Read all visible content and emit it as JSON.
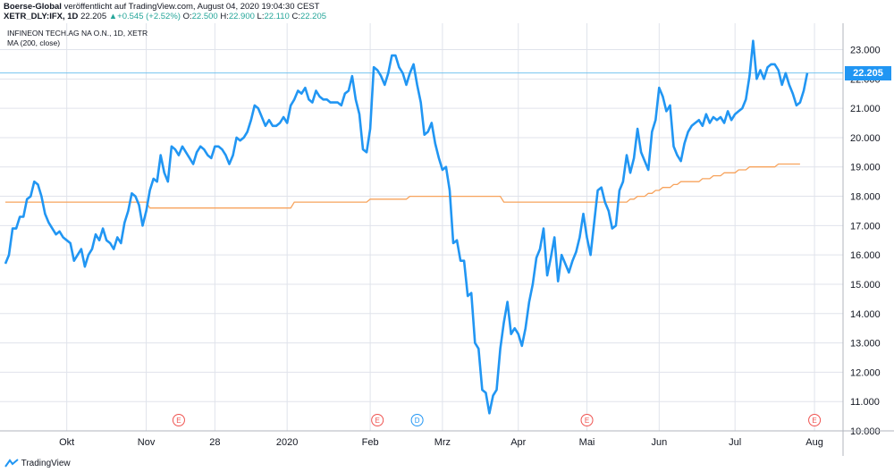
{
  "header": {
    "publisher": "Boerse-Global",
    "published_text": "veröffentlicht auf TradingView.com, August 04, 2020 19:04:30 CEST",
    "symbol": "XETR_DLY:IFX, 1D",
    "last": "22.205",
    "change": "+0.545 (+2.52%)",
    "o_label": "O:",
    "o_value": "22.500",
    "h_label": "H:",
    "h_value": "22.900",
    "l_label": "L:",
    "l_value": "22.110",
    "c_label": "C:",
    "c_value": "22.205"
  },
  "legend": {
    "instrument": "INFINEON TECH.AG NA O.N., 1D, XETR",
    "indicator": "MA (200, close)"
  },
  "price_tag": "22.205",
  "footer": {
    "brand": "TradingView"
  },
  "colors": {
    "price": "#2196f3",
    "ma": "#f7a35c",
    "grid": "#e0e3eb",
    "axis_text": "#131722",
    "last_line": "#74c4f0"
  },
  "chart_data": {
    "type": "line",
    "xlabel": "",
    "ylabel": "",
    "y_ticks": [
      "10.000",
      "11.000",
      "12.000",
      "13.000",
      "14.000",
      "15.000",
      "16.000",
      "17.000",
      "18.000",
      "19.000",
      "20.000",
      "21.000",
      "22.000",
      "23.000"
    ],
    "ylim": [
      10,
      23.9
    ],
    "x_ticks": [
      {
        "label": "Okt",
        "i": 17
      },
      {
        "label": "Nov",
        "i": 39
      },
      {
        "label": "28",
        "i": 58
      },
      {
        "label": "2020",
        "i": 78
      },
      {
        "label": "Feb",
        "i": 101
      },
      {
        "label": "Mrz",
        "i": 121
      },
      {
        "label": "Apr",
        "i": 142
      },
      {
        "label": "Mai",
        "i": 161
      },
      {
        "label": "Jun",
        "i": 181
      },
      {
        "label": "Jul",
        "i": 202
      },
      {
        "label": "Aug",
        "i": 224
      }
    ],
    "events": [
      {
        "label": "E",
        "i": 48,
        "kind": "earnings"
      },
      {
        "label": "E",
        "i": 103,
        "kind": "earnings"
      },
      {
        "label": "D",
        "i": 114,
        "kind": "dividend"
      },
      {
        "label": "E",
        "i": 161,
        "kind": "earnings"
      },
      {
        "label": "E",
        "i": 224,
        "kind": "earnings"
      }
    ],
    "grid": true,
    "series": [
      {
        "name": "",
        "values": [
          15.7,
          16.0,
          16.9,
          16.9,
          17.3,
          17.3,
          17.9,
          18.0,
          18.5,
          18.4,
          18.0,
          17.4,
          17.1,
          16.9,
          16.7,
          16.8,
          16.6,
          16.5,
          16.4,
          15.8,
          16.0,
          16.2,
          15.6,
          16.0,
          16.2,
          16.7,
          16.5,
          16.9,
          16.5,
          16.4,
          16.2,
          16.6,
          16.4,
          17.1,
          17.5,
          18.1,
          18.0,
          17.7,
          17.0,
          17.5,
          18.2,
          18.6,
          18.5,
          19.4,
          18.8,
          18.5,
          19.7,
          19.6,
          19.4,
          19.7,
          19.5,
          19.3,
          19.1,
          19.5,
          19.7,
          19.6,
          19.4,
          19.3,
          19.7,
          19.7,
          19.6,
          19.4,
          19.1,
          19.4,
          20.0,
          19.9,
          20.0,
          20.2,
          20.6,
          21.1,
          21.0,
          20.7,
          20.4,
          20.6,
          20.4,
          20.4,
          20.5,
          20.7,
          20.5,
          21.1,
          21.3,
          21.6,
          21.5,
          21.7,
          21.3,
          21.2,
          21.6,
          21.4,
          21.3,
          21.3,
          21.2,
          21.2,
          21.2,
          21.1,
          21.5,
          21.6,
          22.1,
          21.3,
          20.8,
          19.6,
          19.5,
          20.3,
          22.4,
          22.3,
          22.1,
          21.8,
          22.2,
          22.8,
          22.8,
          22.4,
          22.2,
          21.8,
          22.2,
          22.5,
          21.8,
          21.2,
          20.1,
          20.2,
          20.5,
          19.8,
          19.3,
          18.9,
          19.0,
          18.2,
          16.4,
          16.5,
          15.8,
          15.8,
          14.6,
          14.7,
          13.0,
          12.8,
          11.4,
          11.3,
          10.6,
          11.2,
          11.4,
          12.8,
          13.7,
          14.4,
          13.3,
          13.5,
          13.3,
          12.9,
          13.5,
          14.4,
          15.0,
          15.9,
          16.2,
          16.9,
          15.3,
          15.9,
          16.6,
          15.1,
          16.0,
          15.7,
          15.4,
          15.8,
          16.1,
          16.6,
          17.4,
          16.6,
          16.0,
          17.1,
          18.2,
          18.3,
          17.8,
          17.5,
          16.9,
          17.0,
          18.2,
          18.5,
          19.4,
          18.8,
          19.3,
          20.3,
          19.5,
          19.2,
          18.9,
          20.2,
          20.6,
          21.7,
          21.4,
          20.9,
          21.1,
          19.7,
          19.4,
          19.2,
          19.8,
          20.2,
          20.4,
          20.5,
          20.6,
          20.4,
          20.8,
          20.5,
          20.7,
          20.6,
          20.7,
          20.5,
          20.9,
          20.6,
          20.8,
          20.9,
          21.0,
          21.3,
          22.1,
          23.3,
          22.0,
          22.3,
          22.0,
          22.4,
          22.5,
          22.5,
          22.3,
          21.8,
          22.2,
          21.8,
          21.5,
          21.1,
          21.2,
          21.6,
          22.205
        ]
      },
      {
        "name": "MA (200, close)",
        "values": [
          17.8,
          17.8,
          17.8,
          17.8,
          17.8,
          17.8,
          17.8,
          17.8,
          17.8,
          17.8,
          17.8,
          17.8,
          17.8,
          17.8,
          17.8,
          17.8,
          17.8,
          17.8,
          17.8,
          17.8,
          17.8,
          17.8,
          17.8,
          17.8,
          17.8,
          17.8,
          17.8,
          17.8,
          17.8,
          17.8,
          17.8,
          17.8,
          17.8,
          17.8,
          17.8,
          17.8,
          17.8,
          17.8,
          17.8,
          17.8,
          17.6,
          17.6,
          17.6,
          17.6,
          17.6,
          17.6,
          17.6,
          17.6,
          17.6,
          17.6,
          17.6,
          17.6,
          17.6,
          17.6,
          17.6,
          17.6,
          17.6,
          17.6,
          17.6,
          17.6,
          17.6,
          17.6,
          17.6,
          17.6,
          17.6,
          17.6,
          17.6,
          17.6,
          17.6,
          17.6,
          17.6,
          17.6,
          17.6,
          17.6,
          17.6,
          17.6,
          17.6,
          17.6,
          17.6,
          17.6,
          17.8,
          17.8,
          17.8,
          17.8,
          17.8,
          17.8,
          17.8,
          17.8,
          17.8,
          17.8,
          17.8,
          17.8,
          17.8,
          17.8,
          17.8,
          17.8,
          17.8,
          17.8,
          17.8,
          17.8,
          17.8,
          17.9,
          17.9,
          17.9,
          17.9,
          17.9,
          17.9,
          17.9,
          17.9,
          17.9,
          17.9,
          17.9,
          18.0,
          18.0,
          18.0,
          18.0,
          18.0,
          18.0,
          18.0,
          18.0,
          18.0,
          18.0,
          18.0,
          18.0,
          18.0,
          18.0,
          18.0,
          18.0,
          18.0,
          18.0,
          18.0,
          18.0,
          18.0,
          18.0,
          18.0,
          18.0,
          18.0,
          18.0,
          17.8,
          17.8,
          17.8,
          17.8,
          17.8,
          17.8,
          17.8,
          17.8,
          17.8,
          17.8,
          17.8,
          17.8,
          17.8,
          17.8,
          17.8,
          17.8,
          17.8,
          17.8,
          17.8,
          17.8,
          17.8,
          17.8,
          17.8,
          17.8,
          17.8,
          17.8,
          17.8,
          17.8,
          17.8,
          17.8,
          17.8,
          17.8,
          17.8,
          17.8,
          17.8,
          17.9,
          17.9,
          18.0,
          18.0,
          18.0,
          18.1,
          18.1,
          18.2,
          18.2,
          18.3,
          18.3,
          18.3,
          18.4,
          18.4,
          18.5,
          18.5,
          18.5,
          18.5,
          18.5,
          18.5,
          18.6,
          18.6,
          18.6,
          18.7,
          18.7,
          18.7,
          18.8,
          18.8,
          18.8,
          18.8,
          18.9,
          18.9,
          18.9,
          19.0,
          19.0,
          19.0,
          19.0,
          19.0,
          19.0,
          19.0,
          19.0,
          19.1,
          19.1,
          19.1,
          19.1,
          19.1,
          19.1,
          19.1
        ]
      }
    ]
  }
}
